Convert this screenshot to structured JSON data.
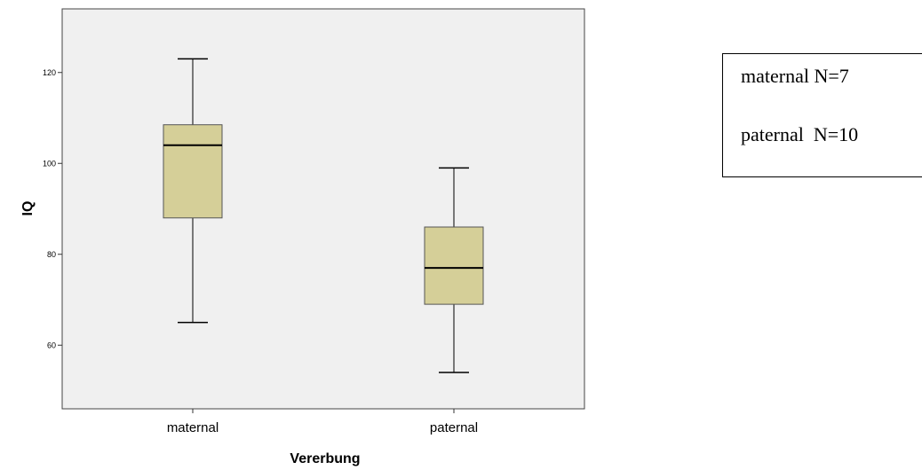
{
  "chart_data": {
    "type": "box",
    "xlabel": "Vererbung",
    "ylabel": "IQ",
    "ylim": [
      46,
      134
    ],
    "yticks": [
      60,
      80,
      100,
      120
    ],
    "grid": false,
    "categories": [
      "maternal",
      "paternal"
    ],
    "boxes": [
      {
        "category": "maternal",
        "whisker_low": 65,
        "q1": 88,
        "median": 104,
        "q3": 108.5,
        "whisker_high": 123
      },
      {
        "category": "paternal",
        "whisker_low": 54,
        "q1": 69,
        "median": 77,
        "q3": 86,
        "whisker_high": 99
      }
    ],
    "colors": {
      "plot_background": "#f0f0f0",
      "box_fill": "#d5cf98",
      "box_stroke": "#555555",
      "line": "#000000"
    }
  },
  "legend_note": {
    "lines": [
      "maternal N=7",
      "paternal  N=10"
    ]
  }
}
